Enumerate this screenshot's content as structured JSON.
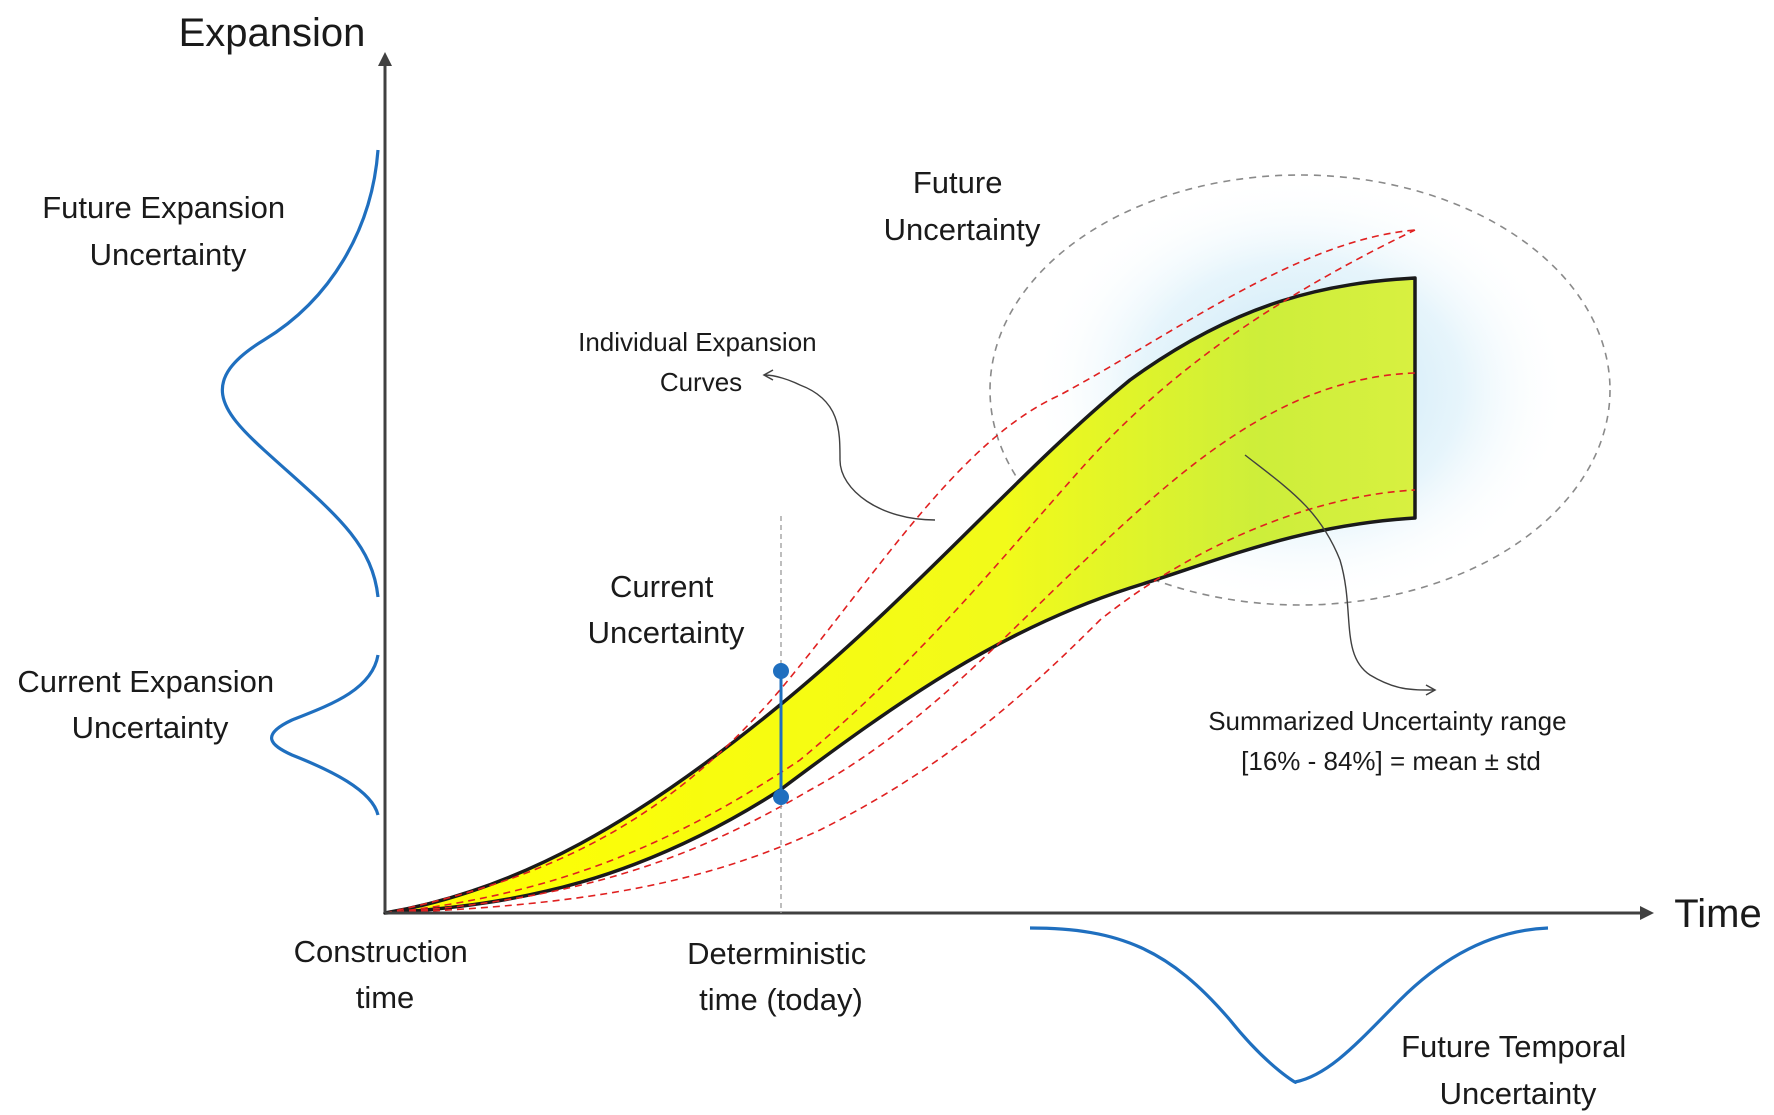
{
  "axes": {
    "y_label": "Expansion",
    "x_label": "Time"
  },
  "labels": {
    "future_expansion_uncertainty": [
      "Future Expansion",
      "Uncertainty"
    ],
    "current_expansion_uncertainty": [
      "Current Expansion",
      "Uncertainty"
    ],
    "future_uncertainty": [
      "Future",
      "Uncertainty"
    ],
    "current_uncertainty": [
      "Current",
      "Uncertainty"
    ],
    "individual_expansion_curves": [
      "Individual Expansion",
      "Curves"
    ],
    "summarized_uncertainty_range": [
      "Summarized Uncertainty range",
      "[16% - 84%] = mean ± std"
    ],
    "construction_time": [
      "Construction",
      "time"
    ],
    "deterministic_time": [
      "Deterministic",
      "time (today)"
    ],
    "future_temporal_uncertainty": [
      "Future Temporal",
      "Uncertainty"
    ]
  },
  "colors": {
    "axis": "#404040",
    "band_fill": "#ffff00",
    "band_fill_future": "#c8e83a",
    "band_outline": "#1a1a1a",
    "individual_curve": "#e02020",
    "distribution_curve": "#1f6fbf",
    "future_glow": "#bfe6f7",
    "ellipse_outline": "#8a8a8a",
    "marker": "#1f6fbf"
  }
}
